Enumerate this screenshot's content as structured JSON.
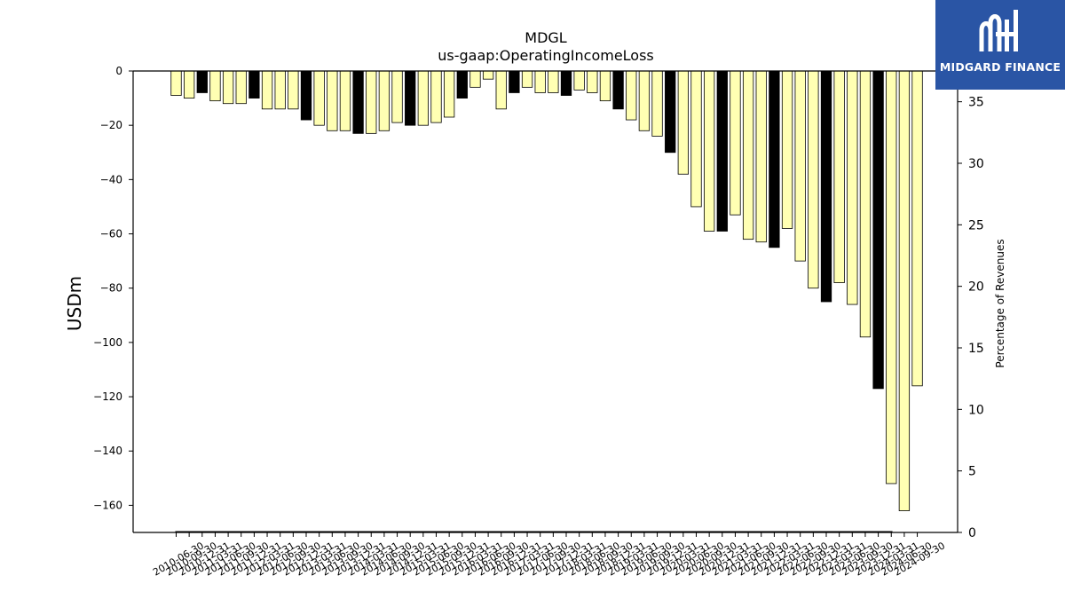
{
  "brand": {
    "name": "MIDGARD FINANCE",
    "logo_icon": "midgard-m-logo-icon",
    "background": "#2a55a5"
  },
  "chart_data": {
    "type": "bar",
    "title": "MDGL",
    "subtitle": "us-gaap:OperatingIncomeLoss",
    "ylabel": "USDm",
    "y2label": "Percentage of Revenues",
    "ylim": [
      -170,
      0
    ],
    "y2lim": [
      0,
      37.5
    ],
    "yticks": [
      0,
      -20,
      -40,
      -60,
      -80,
      -100,
      -120,
      -140,
      -160
    ],
    "y2ticks": [
      0,
      5,
      10,
      15,
      20,
      25,
      30,
      35
    ],
    "grid": false,
    "colors": {
      "quarter": "#ffffb3",
      "annual": "#000000"
    },
    "categories": [
      "2010-06-30",
      "2010-09-30",
      "2010-12-31",
      "2011-03-31",
      "2011-06-30",
      "2011-09-30",
      "2011-12-31",
      "2012-03-31",
      "2012-06-30",
      "2012-09-30",
      "2012-12-31",
      "2013-03-31",
      "2013-06-30",
      "2013-09-30",
      "2013-12-31",
      "2014-03-31",
      "2014-06-30",
      "2014-09-30",
      "2014-12-31",
      "2015-03-31",
      "2015-06-30",
      "2015-09-30",
      "2015-12-31",
      "2016-03-31",
      "2016-06-30",
      "2016-09-30",
      "2016-12-31",
      "2017-03-31",
      "2017-06-30",
      "2017-09-30",
      "2017-12-31",
      "2018-03-31",
      "2018-06-30",
      "2018-09-30",
      "2018-12-31",
      "2019-03-31",
      "2019-06-30",
      "2019-09-30",
      "2019-12-31",
      "2020-03-31",
      "2020-06-30",
      "2020-09-30",
      "2020-12-31",
      "2021-03-31",
      "2021-06-30",
      "2021-09-30",
      "2021-12-31",
      "2022-03-31",
      "2022-06-30",
      "2022-09-30",
      "2022-12-31",
      "2023-03-31",
      "2023-06-30",
      "2023-09-30",
      "2023-12-31",
      "2024-03-31",
      "2024-06-30",
      "2024-09-30"
    ],
    "values": [
      -9,
      -10,
      -8,
      -11,
      -12,
      -12,
      -10,
      -14,
      -14,
      -14,
      -18,
      -20,
      -22,
      -22,
      -23,
      -23,
      -22,
      -19,
      -20,
      -20,
      -19,
      -17,
      -10,
      -6,
      -3,
      -14,
      -8,
      -6,
      -8,
      -8,
      -9,
      -7,
      -8,
      -11,
      -14,
      -18,
      -22,
      -24,
      -30,
      -38,
      -50,
      -59,
      -59,
      -53,
      -62,
      -63,
      -65,
      -58,
      -70,
      -80,
      -85,
      -78,
      -86,
      -98,
      -117,
      -152,
      -162,
      -116
    ],
    "annual": [
      false,
      false,
      true,
      false,
      false,
      false,
      true,
      false,
      false,
      false,
      true,
      false,
      false,
      false,
      true,
      false,
      false,
      false,
      true,
      false,
      false,
      false,
      true,
      false,
      false,
      false,
      true,
      false,
      false,
      false,
      true,
      false,
      false,
      false,
      true,
      false,
      false,
      false,
      true,
      false,
      false,
      false,
      true,
      false,
      false,
      false,
      true,
      false,
      false,
      false,
      true,
      false,
      false,
      false,
      true,
      false,
      false,
      false
    ]
  }
}
